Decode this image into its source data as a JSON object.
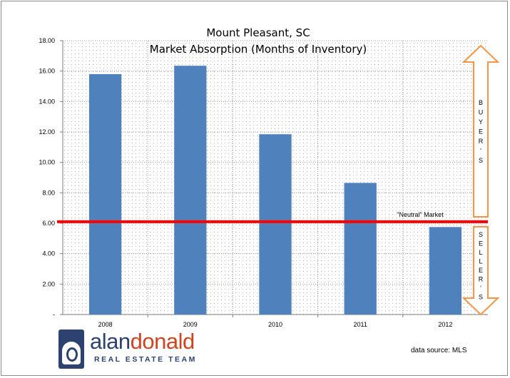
{
  "chart_data": {
    "type": "bar",
    "title": "Mount Pleasant, SC",
    "subtitle": "Market Absorption (Months of Inventory)",
    "categories": [
      "2008",
      "2009",
      "2010",
      "2011",
      "2012"
    ],
    "values": [
      15.8,
      16.35,
      11.85,
      8.65,
      5.75
    ],
    "ylim": [
      0,
      18
    ],
    "yticks": [
      "-",
      "2.00",
      "4.00",
      "6.00",
      "8.00",
      "10.00",
      "12.00",
      "14.00",
      "16.00",
      "18.00"
    ],
    "reference_line": {
      "value": 6.1,
      "label": "\"Neutral\" Market"
    },
    "bar_color": "#4f81bd",
    "reference_color": "#ff0000",
    "arrow_color": "#f79646",
    "buyers_label": "B U Y E R ' S",
    "sellers_label": "S E L L E R ' S"
  },
  "logo": {
    "name_part1": "alan",
    "name_part2": "donald",
    "tagline": "REAL ESTATE TEAM"
  },
  "source": "data source: MLS"
}
